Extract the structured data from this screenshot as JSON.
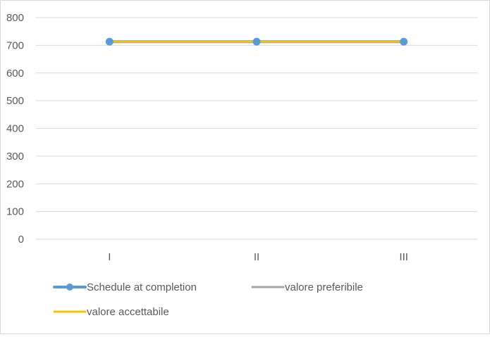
{
  "chart_data": {
    "type": "line",
    "categories": [
      "I",
      "II",
      "III"
    ],
    "ylim": [
      0,
      800
    ],
    "yticks": [
      "0",
      "100",
      "200",
      "300",
      "400",
      "500",
      "600",
      "700",
      "800"
    ],
    "grid": true,
    "legend_position": "bottom",
    "series": [
      {
        "name": "Schedule at completion",
        "values": [
          713,
          713,
          713
        ],
        "color": "#5b9bd5",
        "markers": true
      },
      {
        "name": "valore preferibile",
        "values": [
          713,
          713,
          713
        ],
        "color": "#a5a5a5",
        "markers": false
      },
      {
        "name": "valore accettabile",
        "values": [
          713,
          713,
          713
        ],
        "color": "#ffc000",
        "markers": false
      }
    ]
  }
}
